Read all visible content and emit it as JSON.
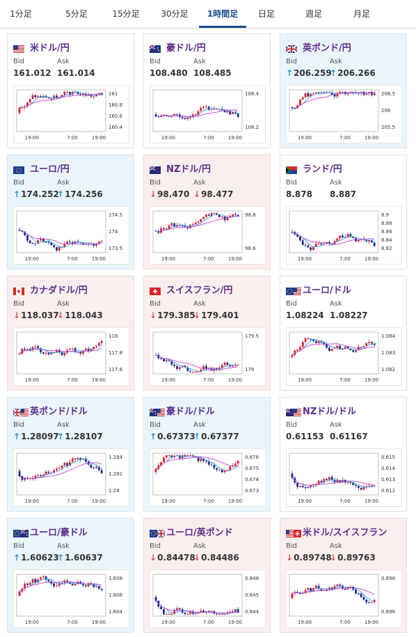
{
  "tabs": [
    "1分足",
    "5分足",
    "15分足",
    "30分足",
    "1時間足",
    "日足",
    "週足",
    "月足"
  ],
  "active_tab": 4,
  "labels": {
    "bid": "Bid",
    "ask": "Ask"
  },
  "colors": {
    "up_bg": "#eaf4fb",
    "down_bg": "#fbeeee",
    "candle_up": "#d9232e",
    "candle_down": "#1a2c8a",
    "ma_short": "#3aa0e0",
    "ma_long": "#c040d0",
    "title": "#5a2c8a",
    "arrow_up": "#2a8fcf",
    "arrow_down": "#d9534f"
  },
  "pairs": [
    {
      "name": "米ドル/円",
      "flag": "us",
      "bid": "161.012",
      "ask": "161.014",
      "trend": "neutral",
      "yticks": [
        "161",
        "160.8",
        "160.6",
        "160.4"
      ],
      "xticks": [
        "19:00",
        "7:00",
        "19:00"
      ]
    },
    {
      "name": "豪ドル/円",
      "flag": "au",
      "bid": "108.480",
      "ask": "108.485",
      "trend": "neutral",
      "yticks": [
        "108.4",
        "108.2"
      ],
      "xticks": [
        "19:00",
        "7:00",
        "19:00"
      ]
    },
    {
      "name": "英ポンド/円",
      "flag": "gb",
      "bid": "206.259",
      "ask": "206.266",
      "trend": "up",
      "yticks": [
        "206.5",
        "206",
        "205.5"
      ],
      "xticks": [
        "19:00",
        "7:00",
        "19:00"
      ]
    },
    {
      "name": "ユーロ/円",
      "flag": "eu",
      "bid": "174.252",
      "ask": "174.256",
      "trend": "up",
      "yticks": [
        "174.5",
        "174",
        "173.5"
      ],
      "xticks": [
        "19:00",
        "7:00",
        "19:00"
      ]
    },
    {
      "name": "NZドル/円",
      "flag": "nz",
      "bid": "98.470",
      "ask": "98.477",
      "trend": "down",
      "yticks": [
        "98.8",
        "98.6"
      ],
      "xticks": [
        "19:00",
        "7:00",
        "19:00"
      ]
    },
    {
      "name": "ランド/円",
      "flag": "za",
      "bid": "8.878",
      "ask": "8.887",
      "trend": "neutral",
      "yticks": [
        "8.9",
        "8.88",
        "8.86",
        "8.84",
        "8.82"
      ],
      "xticks": [
        "19:00",
        "7:00",
        "19:00"
      ]
    },
    {
      "name": "カナダドル/円",
      "flag": "ca",
      "bid": "118.037",
      "ask": "118.043",
      "trend": "down",
      "yticks": [
        "118",
        "117.8",
        "117.6"
      ],
      "xticks": [
        "19:00",
        "7:00",
        "19:00"
      ]
    },
    {
      "name": "スイスフラン/円",
      "flag": "ch",
      "bid": "179.385",
      "ask": "179.401",
      "trend": "down",
      "yticks": [
        "179.5",
        "179"
      ],
      "xticks": [
        "19:00",
        "7:00",
        "19:00"
      ]
    },
    {
      "name": "ユーロ/ドル",
      "flag": "eu-us",
      "bid": "1.08224",
      "ask": "1.08227",
      "trend": "neutral",
      "yticks": [
        "1.084",
        "1.083",
        "1.082"
      ],
      "xticks": [
        "19:00",
        "7:00",
        "19:00"
      ]
    },
    {
      "name": "英ポンド/ドル",
      "flag": "gb-us",
      "bid": "1.28097",
      "ask": "1.28107",
      "trend": "up",
      "yticks": [
        "1.284",
        "1.282",
        "1.28"
      ],
      "xticks": [
        "19:00",
        "7:00",
        "19:00"
      ]
    },
    {
      "name": "豪ドル/ドル",
      "flag": "au-us",
      "bid": "0.67373",
      "ask": "0.67377",
      "trend": "up",
      "yticks": [
        "0.676",
        "0.675",
        "0.674",
        "0.673"
      ],
      "xticks": [
        "19:00",
        "7:00",
        "19:00"
      ]
    },
    {
      "name": "NZドル/ドル",
      "flag": "nz-us",
      "bid": "0.61153",
      "ask": "0.61167",
      "trend": "neutral",
      "yticks": [
        "0.615",
        "0.614",
        "0.613",
        "0.612"
      ],
      "xticks": [
        "19:00",
        "7:00",
        "19:00"
      ]
    },
    {
      "name": "ユーロ/豪ドル",
      "flag": "eu-au",
      "bid": "1.60623",
      "ask": "1.60637",
      "trend": "up",
      "yticks": [
        "1.608",
        "1.606",
        "1.604"
      ],
      "xticks": [
        "19:00",
        "7:00",
        "19:00"
      ]
    },
    {
      "name": "ユーロ/英ポンド",
      "flag": "eu-gb",
      "bid": "0.84478",
      "ask": "0.84486",
      "trend": "down",
      "yticks": [
        "0.846",
        "0.845",
        "0.844"
      ],
      "xticks": [
        "19:00",
        "7:00",
        "19:00"
      ]
    },
    {
      "name": "米ドル/スイスフラン",
      "flag": "us-ch",
      "bid": "0.89748",
      "ask": "0.89763",
      "trend": "down",
      "yticks": [
        "0.898",
        "0.896"
      ],
      "xticks": [
        "19:00",
        "7:00",
        "19:00"
      ]
    }
  ]
}
